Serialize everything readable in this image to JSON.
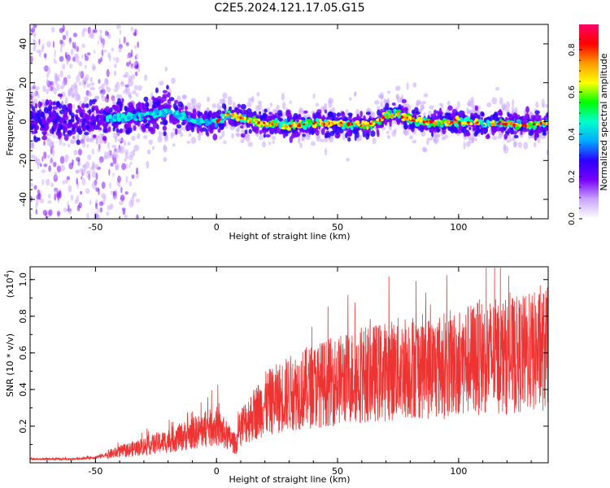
{
  "title": "C2E5.2024.121.17.05.G15",
  "chart_data": [
    {
      "type": "heatmap",
      "title": "",
      "xlabel": "Height of straight line (km)",
      "ylabel": "Frequency (Hz)",
      "xlim": [
        -77,
        137
      ],
      "ylim": [
        -50,
        50
      ],
      "xticks": [
        -50,
        0,
        50,
        100
      ],
      "yticks": [
        -40,
        -20,
        0,
        20,
        40
      ],
      "colorbar": {
        "label": "Normalized spectral amplitude",
        "range": [
          0,
          0.92
        ],
        "ticks": [
          0.0,
          0.2,
          0.4,
          0.6,
          0.8
        ],
        "colormap": [
          "#ffffff",
          "#c9a6ff",
          "#7a00ff",
          "#2a00ff",
          "#00aaff",
          "#00ffcc",
          "#00ff00",
          "#ffff00",
          "#ff9900",
          "#ff0000",
          "#ff0066"
        ]
      },
      "ridge": {
        "description_x_km": [
          -77,
          -70,
          -60,
          -50,
          -40,
          -30,
          -20,
          -10,
          0,
          5,
          10,
          20,
          30,
          40,
          50,
          60,
          65,
          70,
          75,
          80,
          90,
          100,
          110,
          120,
          130,
          137
        ],
        "frequency_hz": [
          0,
          1,
          0,
          1,
          2,
          3,
          5,
          1,
          0,
          4,
          2,
          -1,
          -2,
          -1,
          -1,
          -2,
          -1,
          3,
          4,
          1,
          -1,
          0,
          -1,
          -1,
          -2,
          -1
        ]
      }
    },
    {
      "type": "line",
      "title": "",
      "xlabel": "Height of straight line (km)",
      "ylabel": "SNR (10 * v/v)",
      "yscale_label": "(x10",
      "yscale_exp": "4",
      "xlim": [
        -77,
        137
      ],
      "ylim": [
        0,
        1.07
      ],
      "xticks": [
        -50,
        0,
        50,
        100
      ],
      "yticks": [
        0.2,
        0.4,
        0.6,
        0.8,
        1.0
      ],
      "series": [
        {
          "color": "#ee3333",
          "x": [
            -77,
            -60,
            -50,
            -40,
            -30,
            -20,
            -10,
            0,
            8,
            10,
            15,
            20,
            30,
            40,
            50,
            60,
            70,
            80,
            90,
            100,
            110,
            120,
            130,
            137
          ],
          "y": [
            0.02,
            0.02,
            0.03,
            0.06,
            0.09,
            0.12,
            0.16,
            0.2,
            0.1,
            0.2,
            0.26,
            0.32,
            0.38,
            0.42,
            0.45,
            0.48,
            0.5,
            0.53,
            0.52,
            0.55,
            0.58,
            0.58,
            0.6,
            0.62
          ]
        }
      ]
    }
  ]
}
